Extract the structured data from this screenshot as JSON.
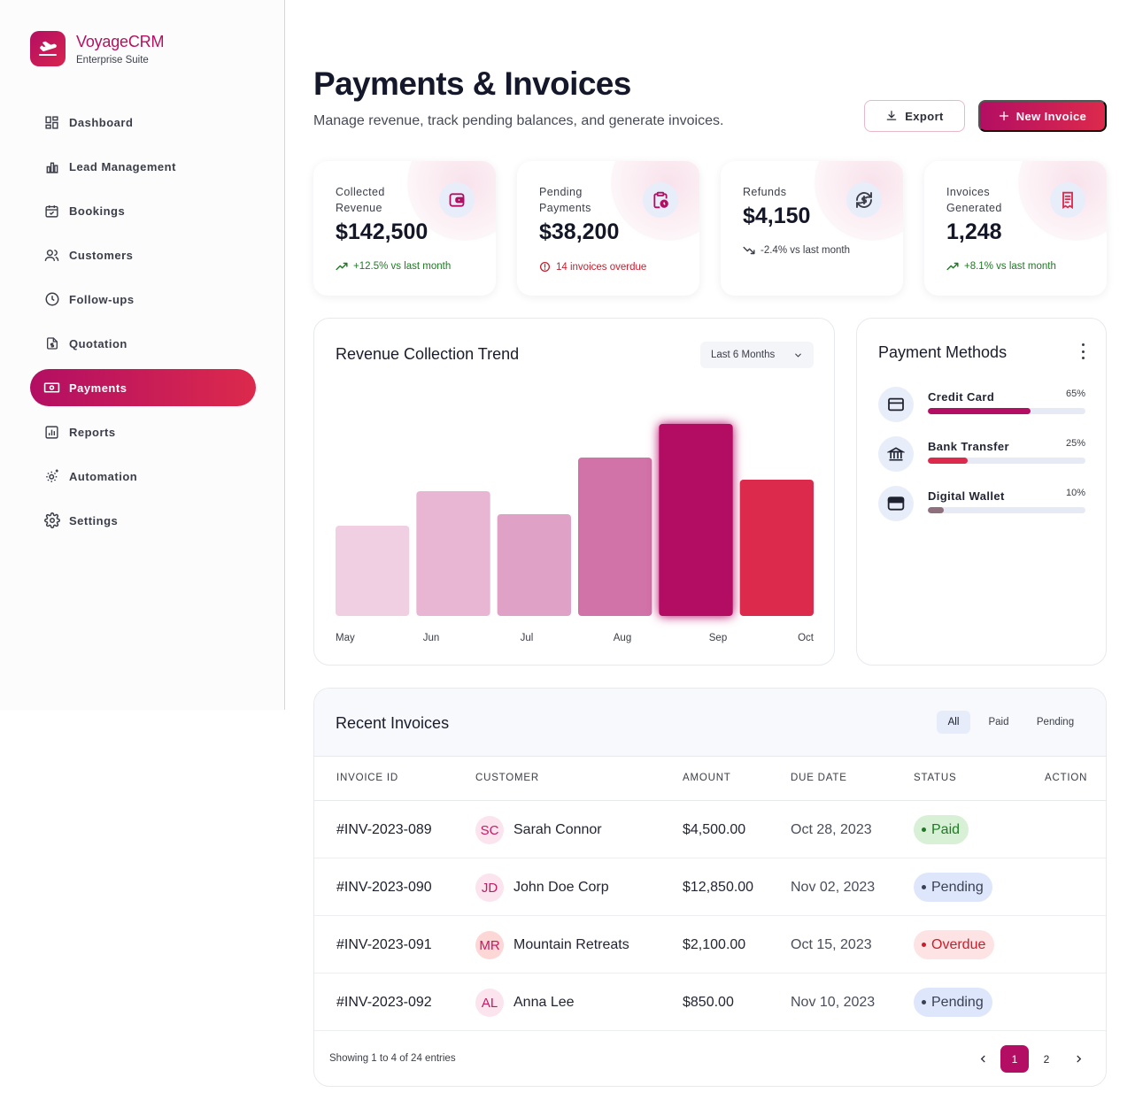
{
  "brand": {
    "name": "VoyageCRM",
    "subtitle": "Enterprise Suite"
  },
  "nav": [
    {
      "label": "Dashboard",
      "icon": "dashboard-icon"
    },
    {
      "label": "Lead Management",
      "icon": "bar-chart-icon"
    },
    {
      "label": "Bookings",
      "icon": "calendar-check-icon"
    },
    {
      "label": "Customers",
      "icon": "users-icon"
    },
    {
      "label": "Follow-ups",
      "icon": "clock-icon"
    },
    {
      "label": "Quotation",
      "icon": "document-dollar-icon"
    },
    {
      "label": "Payments",
      "icon": "money-icon",
      "active": true
    },
    {
      "label": "Reports",
      "icon": "report-icon"
    },
    {
      "label": "Automation",
      "icon": "automation-gear-icon"
    },
    {
      "label": "Settings",
      "icon": "gear-icon"
    }
  ],
  "header": {
    "title": "Payments & Invoices",
    "subtitle": "Manage revenue, track pending balances, and generate invoices.",
    "export_label": "Export",
    "new_invoice_label": "New Invoice"
  },
  "stats": [
    {
      "label": "Collected Revenue",
      "value": "$142,500",
      "trend": "+12.5% vs last month",
      "trend_dir": "up",
      "icon": "wallet-icon"
    },
    {
      "label": "Pending Payments",
      "value": "$38,200",
      "trend": "14 invoices overdue",
      "trend_dir": "alert",
      "icon": "clipboard-clock-icon"
    },
    {
      "label": "Refunds",
      "value": "$4,150",
      "trend": "-2.4% vs last month",
      "trend_dir": "down",
      "icon": "refund-icon"
    },
    {
      "label": "Invoices Generated",
      "value": "1,248",
      "trend": "+8.1% vs last month",
      "trend_dir": "up",
      "icon": "receipt-icon"
    }
  ],
  "chart": {
    "title": "Revenue Collection Trend",
    "range_label": "Last 6 Months"
  },
  "chart_data": {
    "type": "bar",
    "title": "Revenue Collection Trend",
    "categories": [
      "May",
      "Jun",
      "Jul",
      "Aug",
      "Sep",
      "Oct"
    ],
    "values": [
      102,
      141,
      115,
      179,
      217,
      154
    ],
    "ylim": [
      0,
      260
    ],
    "grid": false,
    "colors": [
      "#f0cfe2",
      "#e8b6d3",
      "#e0a1c6",
      "#d172a8",
      "#b30e63",
      "#dc2a4c"
    ]
  },
  "payment_methods": {
    "title": "Payment Methods",
    "items": [
      {
        "name": "Credit Card",
        "percent_label": "65%",
        "percent": 65,
        "color": "#b30e63",
        "icon": "credit-card-icon"
      },
      {
        "name": "Bank Transfer",
        "percent_label": "25%",
        "percent": 25,
        "color": "#dc2a4c",
        "icon": "bank-icon"
      },
      {
        "name": "Digital Wallet",
        "percent_label": "10%",
        "percent": 10,
        "color": "#8e6f7c",
        "icon": "wallet-card-icon"
      }
    ]
  },
  "invoices": {
    "title": "Recent Invoices",
    "filters": [
      "All",
      "Paid",
      "Pending"
    ],
    "active_filter": "All",
    "columns": [
      "INVOICE ID",
      "CUSTOMER",
      "AMOUNT",
      "DUE DATE",
      "STATUS",
      "ACTION"
    ],
    "rows": [
      {
        "id": "#INV-2023-089",
        "initials": "SC",
        "customer": "Sarah Connor",
        "amount": "$4,500.00",
        "due": "Oct 28, 2023",
        "status": "Paid"
      },
      {
        "id": "#INV-2023-090",
        "initials": "JD",
        "customer": "John Doe Corp",
        "amount": "$12,850.00",
        "due": "Nov 02, 2023",
        "status": "Pending"
      },
      {
        "id": "#INV-2023-091",
        "initials": "MR",
        "customer": "Mountain Retreats",
        "amount": "$2,100.00",
        "due": "Oct 15, 2023",
        "status": "Overdue"
      },
      {
        "id": "#INV-2023-092",
        "initials": "AL",
        "customer": "Anna Lee",
        "amount": "$850.00",
        "due": "Nov 10, 2023",
        "status": "Pending"
      }
    ],
    "footer": "Showing 1 to 4 of 24 entries",
    "pages": [
      "1",
      "2"
    ],
    "current_page": "1"
  },
  "colors": {
    "accent": "#b30e63",
    "accent_2": "#dc2a4c",
    "paid_bg": "#d7f0d6",
    "paid_fg": "#1f7a24",
    "pending_bg": "#dde6fb",
    "pending_fg": "#3b4154",
    "overdue_bg": "#fde3e3",
    "overdue_fg": "#c81e2e"
  }
}
